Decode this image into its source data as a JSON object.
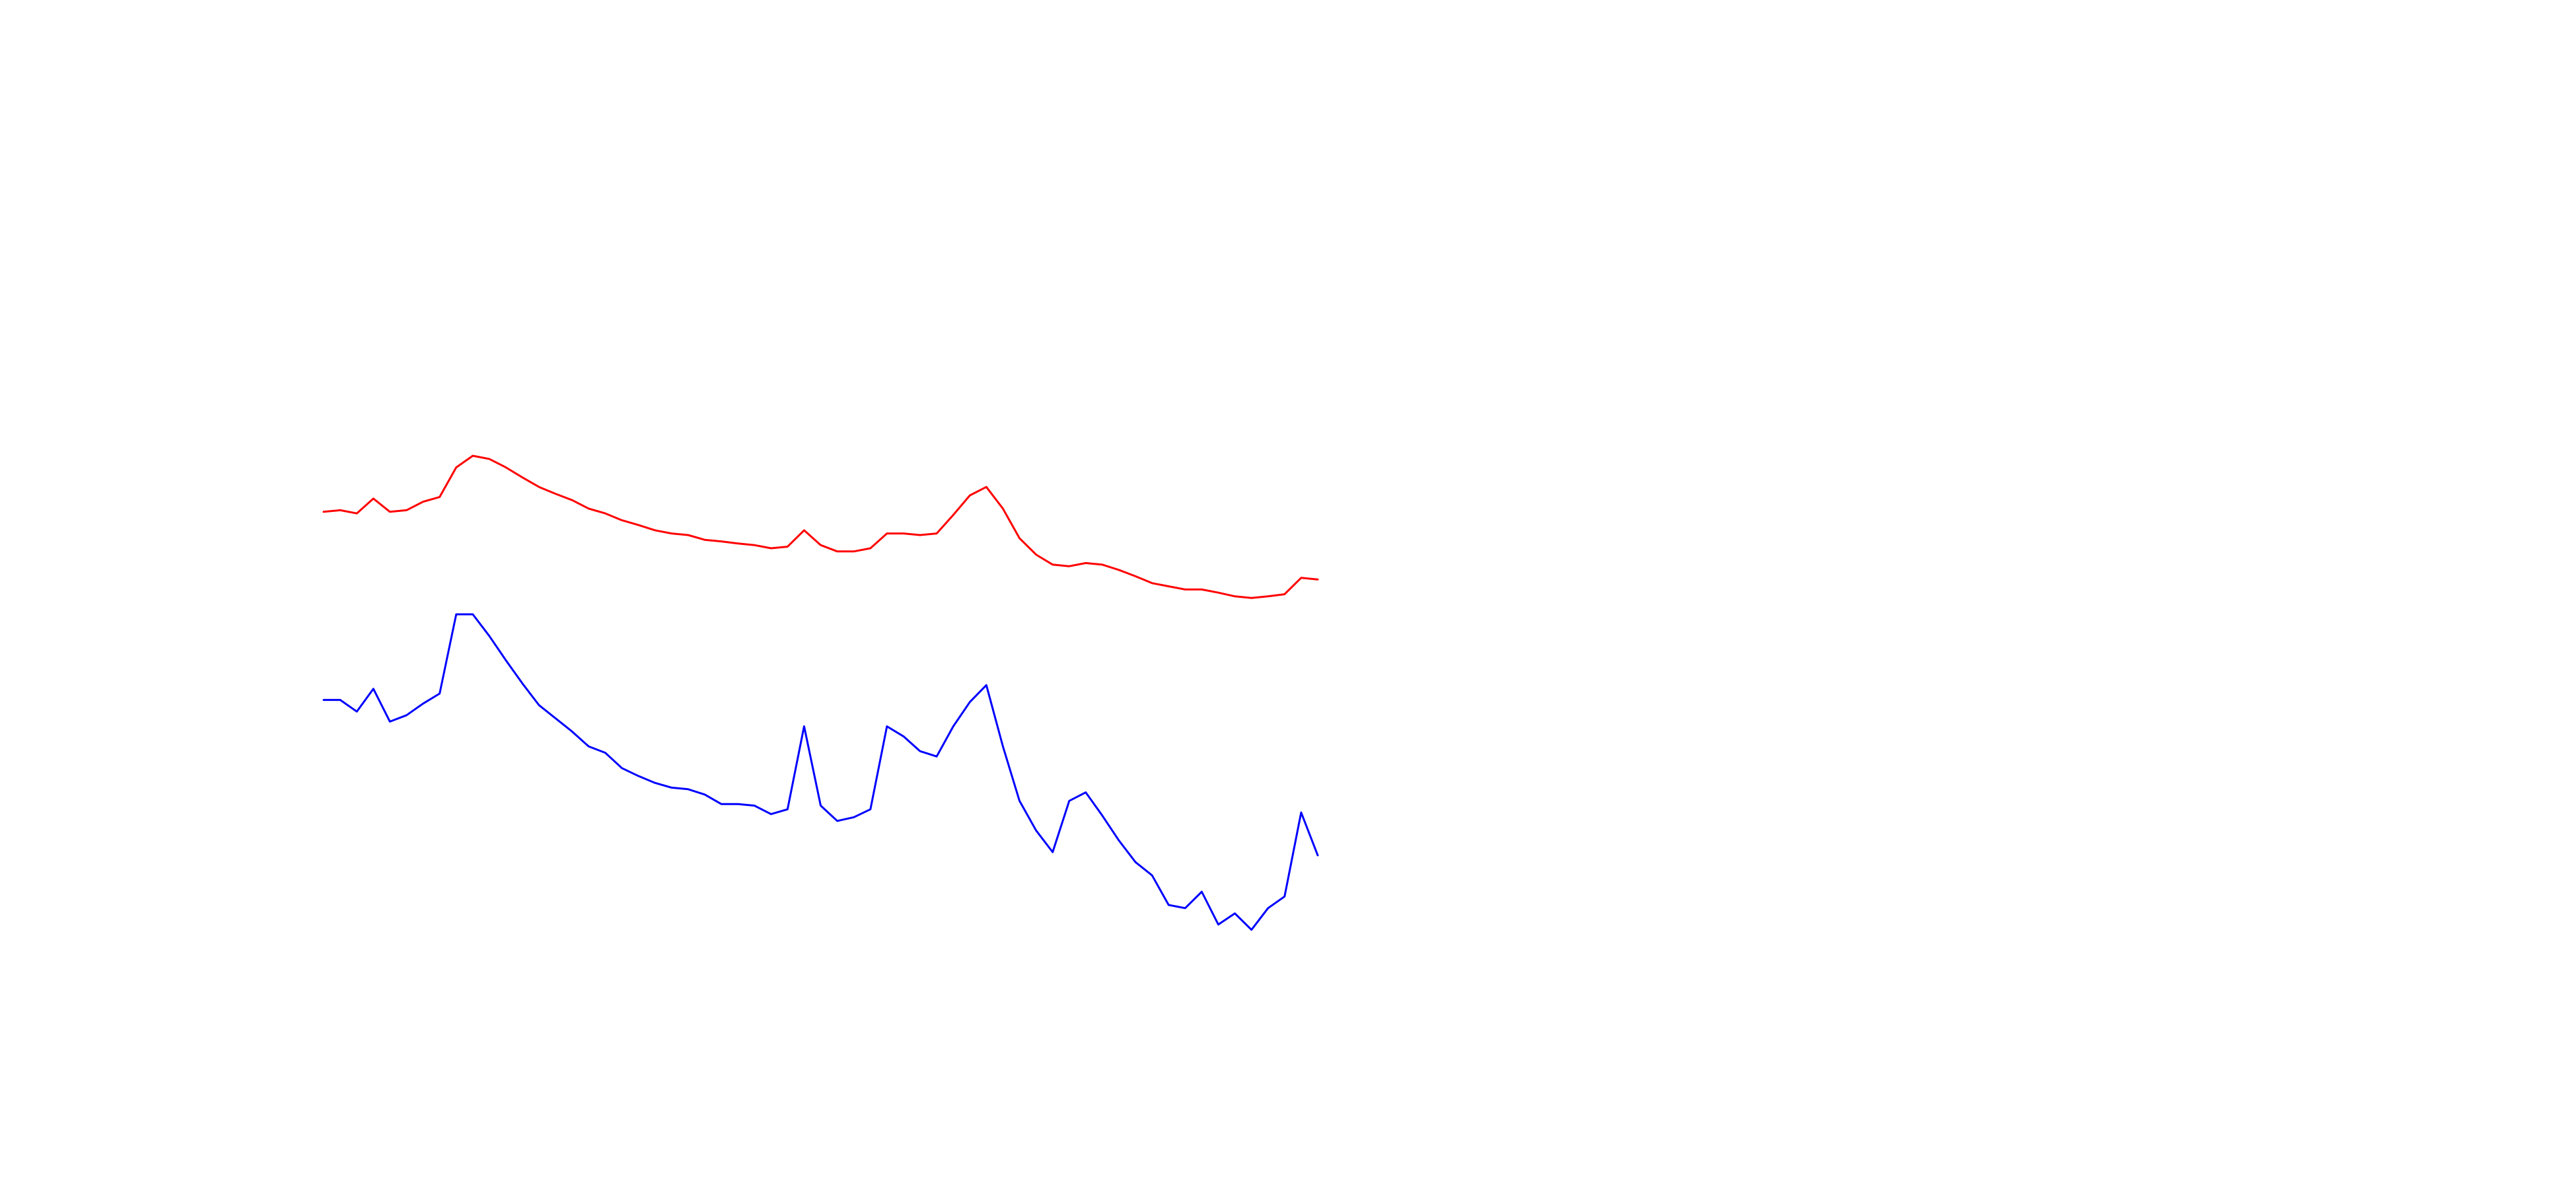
{
  "chart_data": {
    "type": "line",
    "x": [
      0,
      1,
      2,
      3,
      4,
      5,
      6,
      7,
      8,
      9,
      10,
      11,
      12,
      13,
      14,
      15,
      16,
      17,
      18,
      19,
      20,
      21,
      22,
      23,
      24,
      25,
      26,
      27,
      28,
      29,
      30,
      31,
      32,
      33,
      34,
      35,
      36,
      37,
      38,
      39,
      40,
      41,
      42,
      43,
      44,
      45,
      46,
      47,
      48,
      49,
      50,
      51,
      52,
      53,
      54,
      55,
      56,
      57,
      58,
      59,
      60
    ],
    "xlim": [
      0,
      60
    ],
    "ylim": [
      0,
      100
    ],
    "series": [
      {
        "color": "#ff0000",
        "values": [
          84.4,
          84.7,
          84.1,
          86.9,
          84.4,
          84.7,
          86.3,
          87.2,
          92.8,
          95.0,
          94.4,
          92.8,
          90.9,
          89.1,
          87.8,
          86.6,
          85.0,
          84.1,
          82.8,
          81.9,
          80.9,
          80.3,
          80.0,
          79.1,
          78.8,
          78.4,
          78.1,
          77.5,
          77.8,
          80.9,
          78.1,
          76.9,
          76.9,
          77.5,
          80.3,
          80.3,
          80.0,
          80.3,
          83.8,
          87.5,
          89.1,
          85.0,
          79.4,
          76.3,
          74.4,
          74.1,
          74.7,
          74.4,
          73.4,
          72.2,
          70.9,
          70.3,
          69.7,
          69.7,
          69.1,
          68.4,
          68.1,
          68.4,
          68.8,
          71.9,
          71.6
        ]
      },
      {
        "color": "#0000ff",
        "values": [
          48.8,
          48.8,
          46.6,
          50.9,
          44.7,
          45.9,
          48.1,
          50.0,
          65.0,
          65.0,
          60.9,
          56.3,
          51.9,
          47.8,
          45.3,
          42.8,
          40.0,
          38.8,
          35.9,
          34.4,
          33.1,
          32.2,
          31.9,
          30.9,
          29.1,
          29.1,
          28.8,
          27.2,
          28.1,
          43.8,
          28.8,
          25.9,
          26.6,
          28.1,
          43.8,
          41.9,
          39.1,
          38.1,
          43.8,
          48.4,
          51.6,
          40.0,
          29.7,
          24.1,
          20.0,
          29.7,
          31.3,
          26.9,
          22.2,
          18.1,
          15.6,
          10.0,
          9.4,
          12.5,
          6.3,
          8.4,
          5.3,
          9.4,
          11.6,
          27.5,
          19.4
        ]
      }
    ]
  }
}
